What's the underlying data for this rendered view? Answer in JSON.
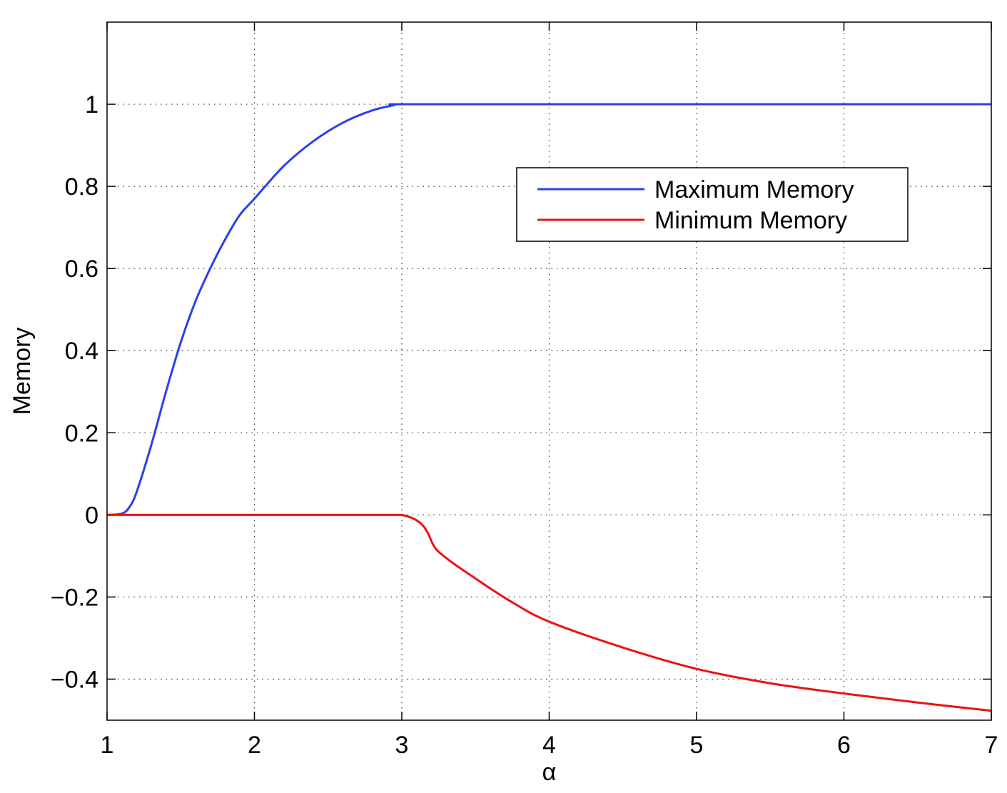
{
  "chart_data": {
    "type": "line",
    "title": "",
    "xlabel": "α",
    "ylabel": "Memory",
    "xlim": [
      1,
      7
    ],
    "ylim": [
      -0.5,
      1.2
    ],
    "xticks": [
      1,
      2,
      3,
      4,
      5,
      6,
      7
    ],
    "xtick_labels": [
      "1",
      "2",
      "3",
      "4",
      "5",
      "6",
      "7"
    ],
    "yticks": [
      -0.4,
      -0.2,
      0,
      0.2,
      0.4,
      0.6,
      0.8,
      1
    ],
    "ytick_labels": [
      "−0.4",
      "−0.2",
      "0",
      "0.2",
      "0.4",
      "0.6",
      "0.8",
      "1"
    ],
    "grid": true,
    "legend_position": "top-right",
    "series": [
      {
        "name": "Maximum Memory",
        "color": "#2a3ff0",
        "x": [
          1.0,
          1.1,
          1.15,
          1.2,
          1.3,
          1.4,
          1.5,
          1.6,
          1.7,
          1.8,
          1.9,
          2.0,
          2.2,
          2.4,
          2.6,
          2.8,
          2.95,
          3.0,
          4.0,
          5.0,
          6.0,
          7.0
        ],
        "y": [
          0.0,
          0.003,
          0.018,
          0.055,
          0.17,
          0.3,
          0.42,
          0.52,
          0.6,
          0.67,
          0.73,
          0.77,
          0.85,
          0.91,
          0.955,
          0.985,
          0.998,
          1.0,
          1.0,
          1.0,
          1.0,
          1.0
        ]
      },
      {
        "name": "Minimum Memory",
        "color": "#ee1111",
        "x": [
          1.0,
          2.0,
          3.0,
          3.25,
          3.5,
          3.75,
          4.0,
          4.5,
          5.0,
          5.5,
          6.0,
          6.5,
          7.0
        ],
        "y": [
          0.0,
          0.0,
          0.0,
          -0.09,
          -0.155,
          -0.213,
          -0.26,
          -0.323,
          -0.375,
          -0.41,
          -0.435,
          -0.457,
          -0.477
        ]
      }
    ]
  }
}
